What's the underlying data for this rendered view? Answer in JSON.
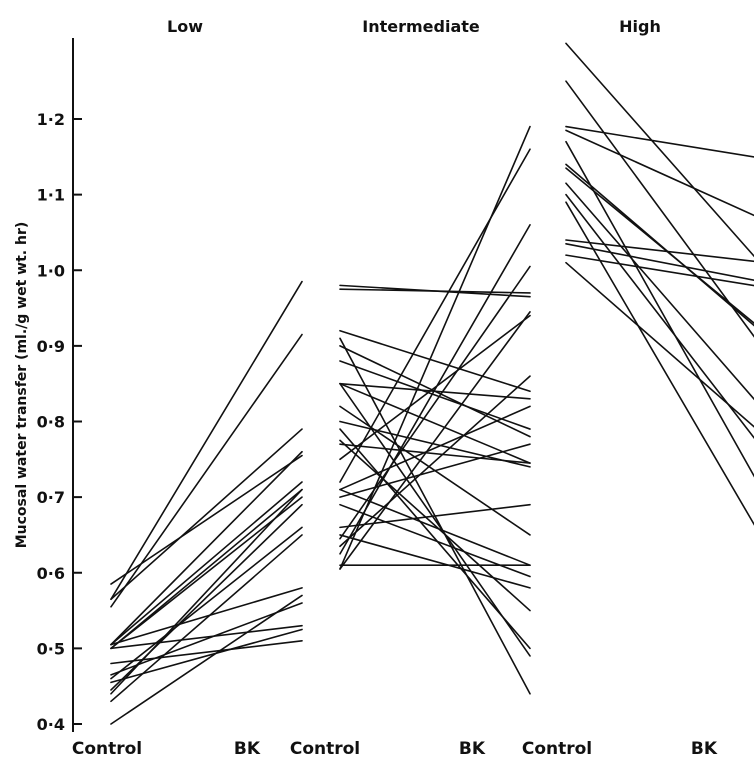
{
  "chart_data": {
    "type": "line",
    "ylabel": "Mucosal water transfer (ml./g wet wt. hr)",
    "ylim": [
      0.4,
      1.3
    ],
    "yticks": [
      0.4,
      0.5,
      0.6,
      0.7,
      0.8,
      0.9,
      1.0,
      1.1,
      1.2
    ],
    "ytick_labels": [
      "0·4",
      "0·5",
      "0·6",
      "0·7",
      "0·8",
      "0·9",
      "1·0",
      "1·1",
      "1·2"
    ],
    "grid": false,
    "line_color": "#111111",
    "panels": [
      {
        "title": "Low",
        "categories": [
          "Control",
          "BK"
        ],
        "pairs": [
          [
            0.565,
            0.985
          ],
          [
            0.555,
            0.915
          ],
          [
            0.565,
            0.79
          ],
          [
            0.585,
            0.755
          ],
          [
            0.505,
            0.72
          ],
          [
            0.505,
            0.76
          ],
          [
            0.5,
            0.71
          ],
          [
            0.5,
            0.7
          ],
          [
            0.44,
            0.71
          ],
          [
            0.445,
            0.69
          ],
          [
            0.46,
            0.66
          ],
          [
            0.43,
            0.65
          ],
          [
            0.505,
            0.58
          ],
          [
            0.465,
            0.56
          ],
          [
            0.5,
            0.53
          ],
          [
            0.455,
            0.525
          ],
          [
            0.4,
            0.57
          ],
          [
            0.48,
            0.51
          ]
        ]
      },
      {
        "title": "Intermediate",
        "categories": [
          "Control",
          "BK"
        ],
        "pairs": [
          [
            0.98,
            0.965
          ],
          [
            0.975,
            0.97
          ],
          [
            0.92,
            0.84
          ],
          [
            0.9,
            0.78
          ],
          [
            0.88,
            0.79
          ],
          [
            0.85,
            0.83
          ],
          [
            0.85,
            0.745
          ],
          [
            0.85,
            0.49
          ],
          [
            0.8,
            0.74
          ],
          [
            0.82,
            0.65
          ],
          [
            0.77,
            0.745
          ],
          [
            0.775,
            0.55
          ],
          [
            0.71,
            0.82
          ],
          [
            0.7,
            0.77
          ],
          [
            0.71,
            0.61
          ],
          [
            0.66,
            0.69
          ],
          [
            0.69,
            0.595
          ],
          [
            0.635,
            0.86
          ],
          [
            0.65,
            0.58
          ],
          [
            0.61,
            0.61
          ],
          [
            0.625,
            1.06
          ],
          [
            0.645,
            1.005
          ],
          [
            0.605,
            1.19
          ],
          [
            0.72,
            1.16
          ],
          [
            0.75,
            0.94
          ],
          [
            0.79,
            0.5
          ],
          [
            0.91,
            0.44
          ],
          [
            0.605,
            0.945
          ]
        ]
      },
      {
        "title": "High",
        "categories": [
          "Control",
          "BK"
        ],
        "pairs": [
          [
            1.3,
            0.95
          ],
          [
            1.25,
            0.83
          ],
          [
            1.19,
            1.14
          ],
          [
            1.185,
            1.045
          ],
          [
            1.14,
            0.875
          ],
          [
            1.135,
            0.88
          ],
          [
            1.115,
            0.76
          ],
          [
            1.1,
            0.7
          ],
          [
            1.04,
            1.005
          ],
          [
            1.035,
            0.975
          ],
          [
            1.02,
            0.97
          ],
          [
            1.01,
            0.74
          ],
          [
            1.09,
            0.56
          ],
          [
            1.17,
            0.62
          ]
        ]
      }
    ]
  }
}
